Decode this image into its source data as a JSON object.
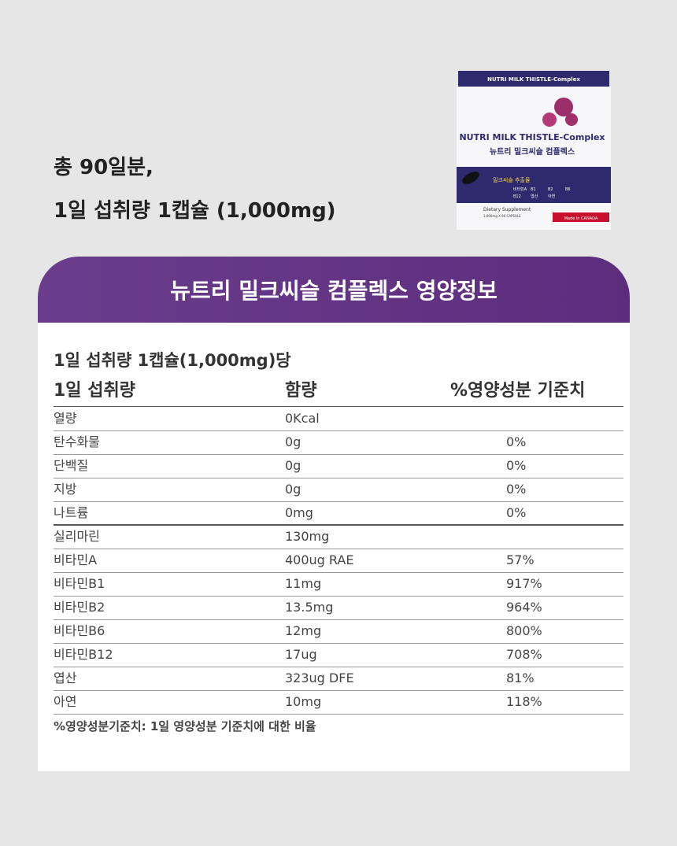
{
  "header": {
    "lines": [
      "총 90일분,",
      "1일 섭취량 1캡슐 (1,000mg)"
    ]
  },
  "product_box": {
    "band": "NUTRI MILK THISTLE-Complex",
    "brand": "NUTRI MILK THISTLE-Complex",
    "korean_name": "뉴트리 밀크씨슬 컴플렉스",
    "ingredient": "밀크씨슬 추출물",
    "vitamins": [
      "비타민A",
      "B1",
      "B2",
      "B6",
      "B12",
      "엽산",
      "아연"
    ],
    "supplement": "Dietary Supplement",
    "capsules": "1,000mg X 90 CAPSULE",
    "origin": "Made in CANADA"
  },
  "panel": {
    "title": "뉴트리 밀크씨슬 컴플렉스 영양정보",
    "serving": "1일 섭취량 1캡슐(1,000mg)당",
    "table": {
      "columns": [
        "1일 섭취량",
        "함량",
        "%영양성분 기준치"
      ],
      "rows": [
        [
          "열량",
          "0Kcal",
          ""
        ],
        [
          "탄수화물",
          "0g",
          "0%"
        ],
        [
          "단백질",
          "0g",
          "0%"
        ],
        [
          "지방",
          "0g",
          "0%"
        ],
        [
          "나트륨",
          "0mg",
          "0%"
        ],
        [
          "실리마린",
          "130mg",
          ""
        ],
        [
          "비타민A",
          "400ug RAE",
          "57%"
        ],
        [
          "비타민B1",
          "11mg",
          "917%"
        ],
        [
          "비타민B2",
          "13.5mg",
          "964%"
        ],
        [
          "비타민B6",
          "12mg",
          "800%"
        ],
        [
          "비타민B12",
          "17ug",
          "708%"
        ],
        [
          "엽산",
          "323ug DFE",
          "81%"
        ],
        [
          "아연",
          "10mg",
          "118%"
        ]
      ]
    },
    "footnote": "%영양성분기준치: 1일 영양성분 기준치에 대한 비율"
  }
}
